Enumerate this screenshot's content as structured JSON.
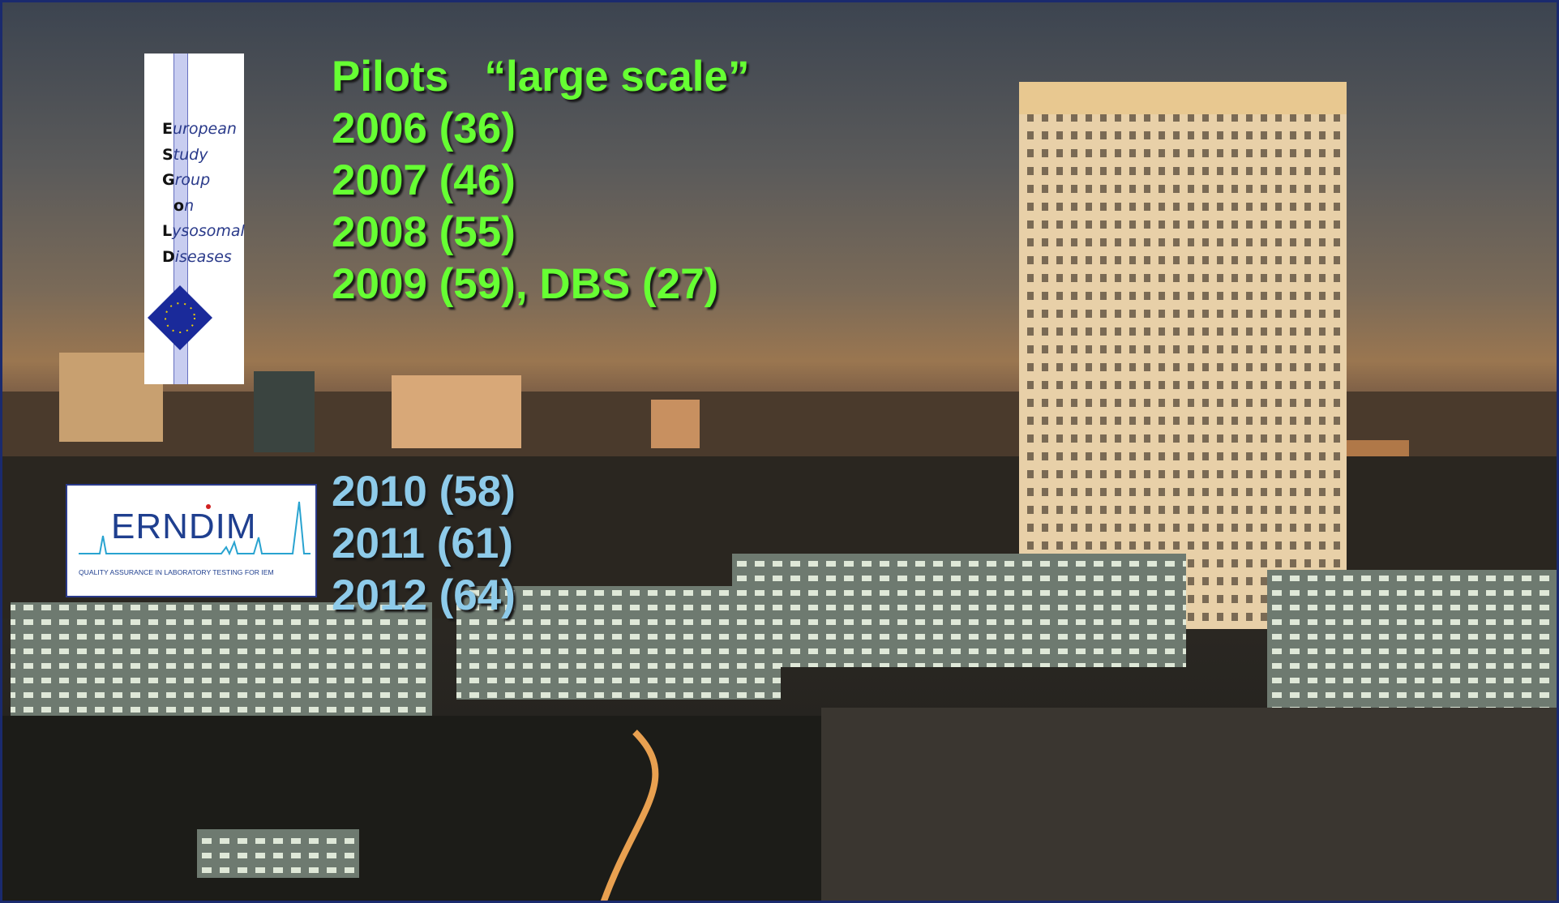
{
  "slide": {
    "heading": "Pilots   “large scale”",
    "pilot_years": [
      "2006 (36)",
      "2007 (46)",
      "2008 (55)",
      "2009 (59), DBS (27)"
    ],
    "later_years": [
      "2010 (58)",
      "2011 (61)",
      "2012 (64)"
    ]
  },
  "logos": {
    "esgld": {
      "lines": [
        "European",
        "Study",
        "Group",
        "on",
        "Lysosomal",
        "Diseases"
      ]
    },
    "erndim": {
      "name": "ERNDIM",
      "tagline": "QUALITY ASSURANCE IN LABORATORY TESTING FOR IEM"
    }
  }
}
